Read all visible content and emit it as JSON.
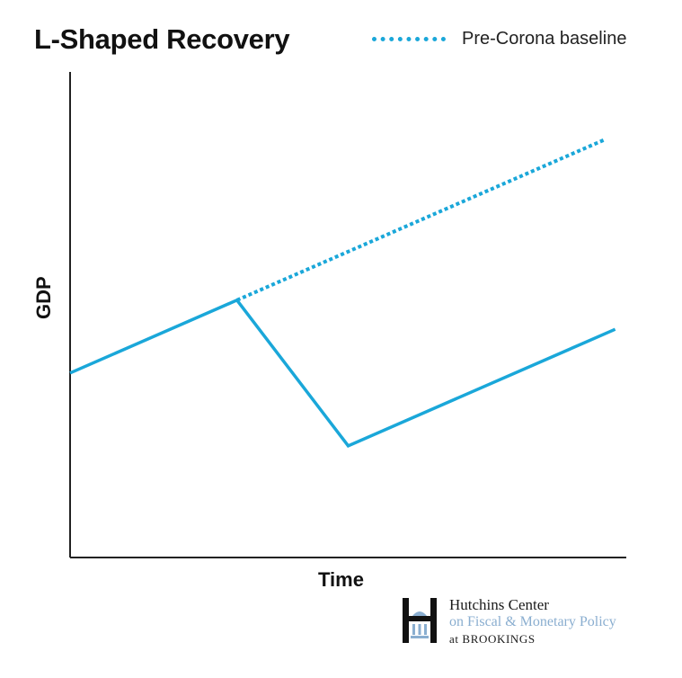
{
  "chart_data": {
    "type": "line",
    "title": "L-Shaped Recovery",
    "xlabel": "Time",
    "ylabel": "GDP",
    "grid": false,
    "legend_position": "top-right",
    "legend": [
      {
        "name": "Pre-Corona baseline",
        "style": "dotted",
        "color": "#1aa7d9"
      }
    ],
    "series": [
      {
        "name": "",
        "style": "solid",
        "color": "#1aa7d9",
        "points": [
          [
            0,
            38
          ],
          [
            30,
            53
          ],
          [
            50,
            23
          ],
          [
            98,
            47
          ]
        ]
      },
      {
        "name": "Pre-Corona baseline",
        "style": "dotted",
        "color": "#1aa7d9",
        "points": [
          [
            30,
            53
          ],
          [
            96,
            86
          ]
        ]
      }
    ],
    "xlim": [
      0,
      100
    ],
    "ylim": [
      0,
      100
    ]
  },
  "logo": {
    "line1": "Hutchins Center",
    "line2": "on Fiscal & Monetary Policy",
    "line3": "at BROOKINGS"
  }
}
